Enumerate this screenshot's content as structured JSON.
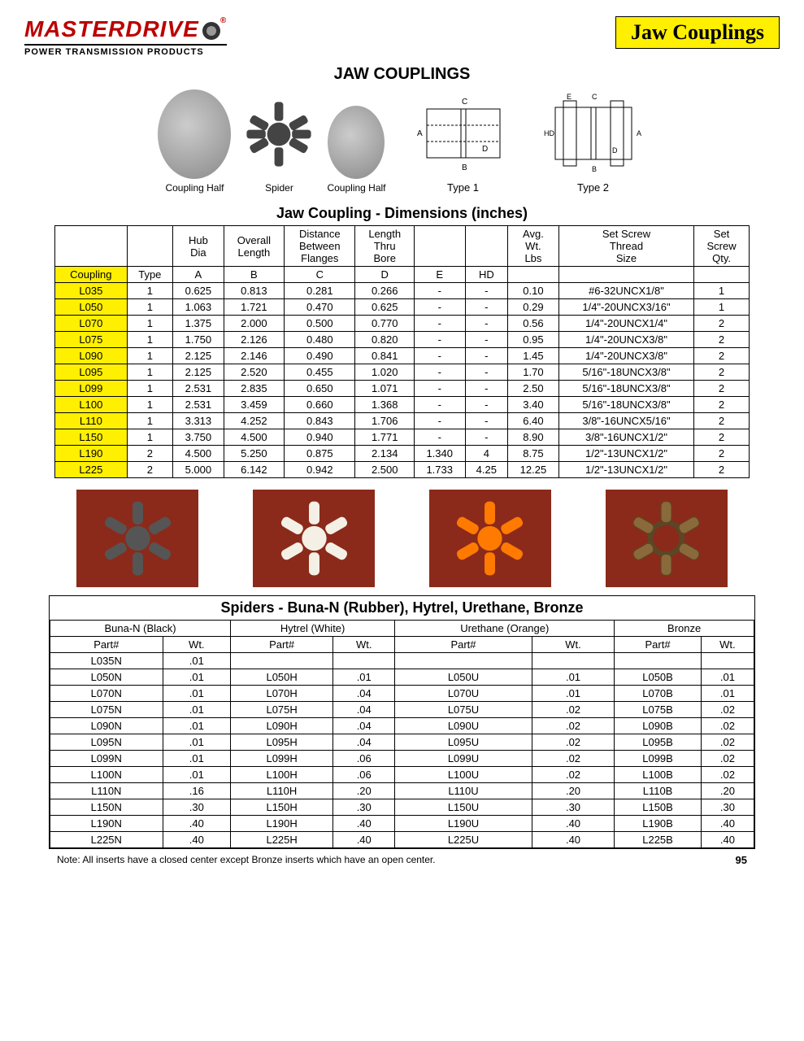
{
  "brand": {
    "name": "MASTERDRIVE",
    "subtitle": "POWER TRANSMISSION PRODUCTS"
  },
  "section_banner": "Jaw Couplings",
  "page_title": "JAW COUPLINGS",
  "illus": {
    "coupling_half": "Coupling Half",
    "spider": "Spider",
    "type1": "Type 1",
    "type2": "Type 2"
  },
  "dim_table": {
    "title": "Jaw Coupling - Dimensions (inches)",
    "header_top": [
      "",
      "",
      "Hub Dia",
      "Overall Length",
      "Distance Between Flanges",
      "Length Thru Bore",
      "",
      "",
      "Avg. Wt. Lbs",
      "Set Screw Thread Size",
      "Set Screw Qty."
    ],
    "header_bot": [
      "Coupling",
      "Type",
      "A",
      "B",
      "C",
      "D",
      "E",
      "HD",
      "",
      "",
      ""
    ],
    "rows": [
      [
        "L035",
        "1",
        "0.625",
        "0.813",
        "0.281",
        "0.266",
        "-",
        "-",
        "0.10",
        "#6-32UNCX1/8\"",
        "1"
      ],
      [
        "L050",
        "1",
        "1.063",
        "1.721",
        "0.470",
        "0.625",
        "-",
        "-",
        "0.29",
        "1/4\"-20UNCX3/16\"",
        "1"
      ],
      [
        "L070",
        "1",
        "1.375",
        "2.000",
        "0.500",
        "0.770",
        "-",
        "-",
        "0.56",
        "1/4\"-20UNCX1/4\"",
        "2"
      ],
      [
        "L075",
        "1",
        "1.750",
        "2.126",
        "0.480",
        "0.820",
        "-",
        "-",
        "0.95",
        "1/4\"-20UNCX3/8\"",
        "2"
      ],
      [
        "L090",
        "1",
        "2.125",
        "2.146",
        "0.490",
        "0.841",
        "-",
        "-",
        "1.45",
        "1/4\"-20UNCX3/8\"",
        "2"
      ],
      [
        "L095",
        "1",
        "2.125",
        "2.520",
        "0.455",
        "1.020",
        "-",
        "-",
        "1.70",
        "5/16\"-18UNCX3/8\"",
        "2"
      ],
      [
        "L099",
        "1",
        "2.531",
        "2.835",
        "0.650",
        "1.071",
        "-",
        "-",
        "2.50",
        "5/16\"-18UNCX3/8\"",
        "2"
      ],
      [
        "L100",
        "1",
        "2.531",
        "3.459",
        "0.660",
        "1.368",
        "-",
        "-",
        "3.40",
        "5/16\"-18UNCX3/8\"",
        "2"
      ],
      [
        "L110",
        "1",
        "3.313",
        "4.252",
        "0.843",
        "1.706",
        "-",
        "-",
        "6.40",
        "3/8\"-16UNCX5/16\"",
        "2"
      ],
      [
        "L150",
        "1",
        "3.750",
        "4.500",
        "0.940",
        "1.771",
        "-",
        "-",
        "8.90",
        "3/8\"-16UNCX1/2\"",
        "2"
      ],
      [
        "L190",
        "2",
        "4.500",
        "5.250",
        "0.875",
        "2.134",
        "1.340",
        "4",
        "8.75",
        "1/2\"-13UNCX1/2\"",
        "2"
      ],
      [
        "L225",
        "2",
        "5.000",
        "6.142",
        "0.942",
        "2.500",
        "1.733",
        "4.25",
        "12.25",
        "1/2\"-13UNCX1/2\"",
        "2"
      ]
    ]
  },
  "spider_colors": {
    "black": "#555555",
    "white": "#f4f0e6",
    "orange": "#ff7a00",
    "bronze": "#8a6a3a",
    "bg": "#8b2a1a"
  },
  "spiders_table": {
    "title": "Spiders - Buna-N (Rubber), Hytrel, Urethane, Bronze",
    "materials": [
      "Buna-N (Black)",
      "Hytrel (White)",
      "Urethane (Orange)",
      "Bronze"
    ],
    "sub": [
      "Part#",
      "Wt."
    ],
    "rows": [
      [
        "L035N",
        ".01",
        "",
        "",
        "",
        "",
        "",
        ""
      ],
      [
        "L050N",
        ".01",
        "L050H",
        ".01",
        "L050U",
        ".01",
        "L050B",
        ".01"
      ],
      [
        "L070N",
        ".01",
        "L070H",
        ".04",
        "L070U",
        ".01",
        "L070B",
        ".01"
      ],
      [
        "L075N",
        ".01",
        "L075H",
        ".04",
        "L075U",
        ".02",
        "L075B",
        ".02"
      ],
      [
        "L090N",
        ".01",
        "L090H",
        ".04",
        "L090U",
        ".02",
        "L090B",
        ".02"
      ],
      [
        "L095N",
        ".01",
        "L095H",
        ".04",
        "L095U",
        ".02",
        "L095B",
        ".02"
      ],
      [
        "L099N",
        ".01",
        "L099H",
        ".06",
        "L099U",
        ".02",
        "L099B",
        ".02"
      ],
      [
        "L100N",
        ".01",
        "L100H",
        ".06",
        "L100U",
        ".02",
        "L100B",
        ".02"
      ],
      [
        "L110N",
        ".16",
        "L110H",
        ".20",
        "L110U",
        ".20",
        "L110B",
        ".20"
      ],
      [
        "L150N",
        ".30",
        "L150H",
        ".30",
        "L150U",
        ".30",
        "L150B",
        ".30"
      ],
      [
        "L190N",
        ".40",
        "L190H",
        ".40",
        "L190U",
        ".40",
        "L190B",
        ".40"
      ],
      [
        "L225N",
        ".40",
        "L225H",
        ".40",
        "L225U",
        ".40",
        "L225B",
        ".40"
      ]
    ]
  },
  "footnote": "Note: All inserts have a closed center except Bronze inserts which have an open center.",
  "page_number": "95"
}
